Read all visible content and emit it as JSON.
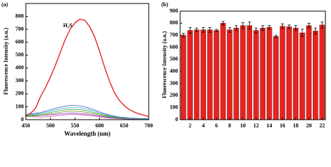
{
  "chart_data": [
    {
      "type": "line",
      "panel_label": "(a)",
      "annotation": "H₂S",
      "x_label": "Wavelength (nm)",
      "y_label": "Fluorescence Intensity (a.u.)",
      "x": [
        450,
        460,
        470,
        480,
        490,
        500,
        510,
        520,
        530,
        540,
        550,
        560,
        570,
        580,
        590,
        600,
        610,
        620,
        630,
        640,
        650,
        660,
        670,
        680,
        690,
        700
      ],
      "xlim": [
        450,
        700
      ],
      "xticks": [
        450,
        500,
        550,
        600,
        650,
        700
      ],
      "ylim": [
        0,
        900
      ],
      "yticks": [
        0,
        100,
        200,
        300,
        400,
        500,
        600,
        700,
        800
      ],
      "series": [
        {
          "color": "#e8231f",
          "values": [
            30,
            50,
            90,
            180,
            250,
            330,
            420,
            520,
            620,
            700,
            750,
            778,
            770,
            720,
            640,
            530,
            410,
            300,
            210,
            150,
            110,
            80,
            60,
            45,
            35,
            25
          ]
        },
        {
          "color": "#3a5fcd",
          "values": [
            39,
            44,
            50,
            55,
            66,
            77,
            88,
            97,
            105,
            110,
            110,
            107,
            99,
            88,
            75,
            61,
            47,
            36,
            28,
            21,
            17,
            13,
            11,
            9,
            8,
            7
          ]
        },
        {
          "color": "#35b6c8",
          "values": [
            33,
            38,
            43,
            48,
            57,
            67,
            76,
            84,
            90,
            95,
            95,
            92,
            86,
            76,
            65,
            52,
            41,
            31,
            24,
            18,
            14,
            11,
            10,
            8,
            7,
            6
          ]
        },
        {
          "color": "#2e9e3a",
          "values": [
            28,
            32,
            36,
            40,
            48,
            56,
            64,
            70,
            76,
            80,
            80,
            78,
            72,
            64,
            54,
            44,
            34,
            26,
            20,
            15,
            12,
            10,
            8,
            6,
            6,
            5
          ]
        },
        {
          "color": "#7a8a1e",
          "values": [
            23,
            26,
            29,
            33,
            39,
            46,
            52,
            57,
            62,
            65,
            65,
            63,
            59,
            52,
            44,
            36,
            28,
            21,
            16,
            12,
            10,
            8,
            7,
            5,
            5,
            4
          ]
        },
        {
          "color": "#8a3cc8",
          "values": [
            40,
            38,
            35,
            33,
            35,
            38,
            42,
            44,
            48,
            50,
            50,
            48,
            45,
            40,
            34,
            28,
            22,
            17,
            13,
            10,
            8,
            6,
            5,
            4,
            4,
            3
          ]
        },
        {
          "color": "#d23ca8",
          "values": [
            30,
            26,
            22,
            20,
            22,
            26,
            30,
            33,
            37,
            40,
            40,
            39,
            36,
            32,
            27,
            22,
            17,
            13,
            10,
            8,
            6,
            5,
            4,
            3,
            3,
            2
          ]
        }
      ]
    },
    {
      "type": "bar",
      "panel_label": "(b)",
      "y_label": "Fluorescence Intensity (a.u.)",
      "categories": [
        null,
        "2",
        null,
        "4",
        null,
        "6",
        null,
        "8",
        null,
        "10",
        null,
        "12",
        null,
        "14",
        null,
        "16",
        null,
        "18",
        null,
        "20",
        null,
        "22"
      ],
      "values": [
        700,
        740,
        745,
        745,
        745,
        740,
        800,
        745,
        760,
        780,
        780,
        740,
        760,
        765,
        690,
        775,
        770,
        760,
        720,
        780,
        735,
        785
      ],
      "errors": [
        15,
        25,
        15,
        20,
        20,
        10,
        15,
        20,
        20,
        25,
        30,
        20,
        20,
        15,
        10,
        20,
        15,
        20,
        30,
        20,
        25,
        25
      ],
      "color": "#e8231f",
      "ylim": [
        0,
        900
      ],
      "yticks": [
        0,
        100,
        200,
        300,
        400,
        500,
        600,
        700,
        800,
        900
      ]
    }
  ]
}
